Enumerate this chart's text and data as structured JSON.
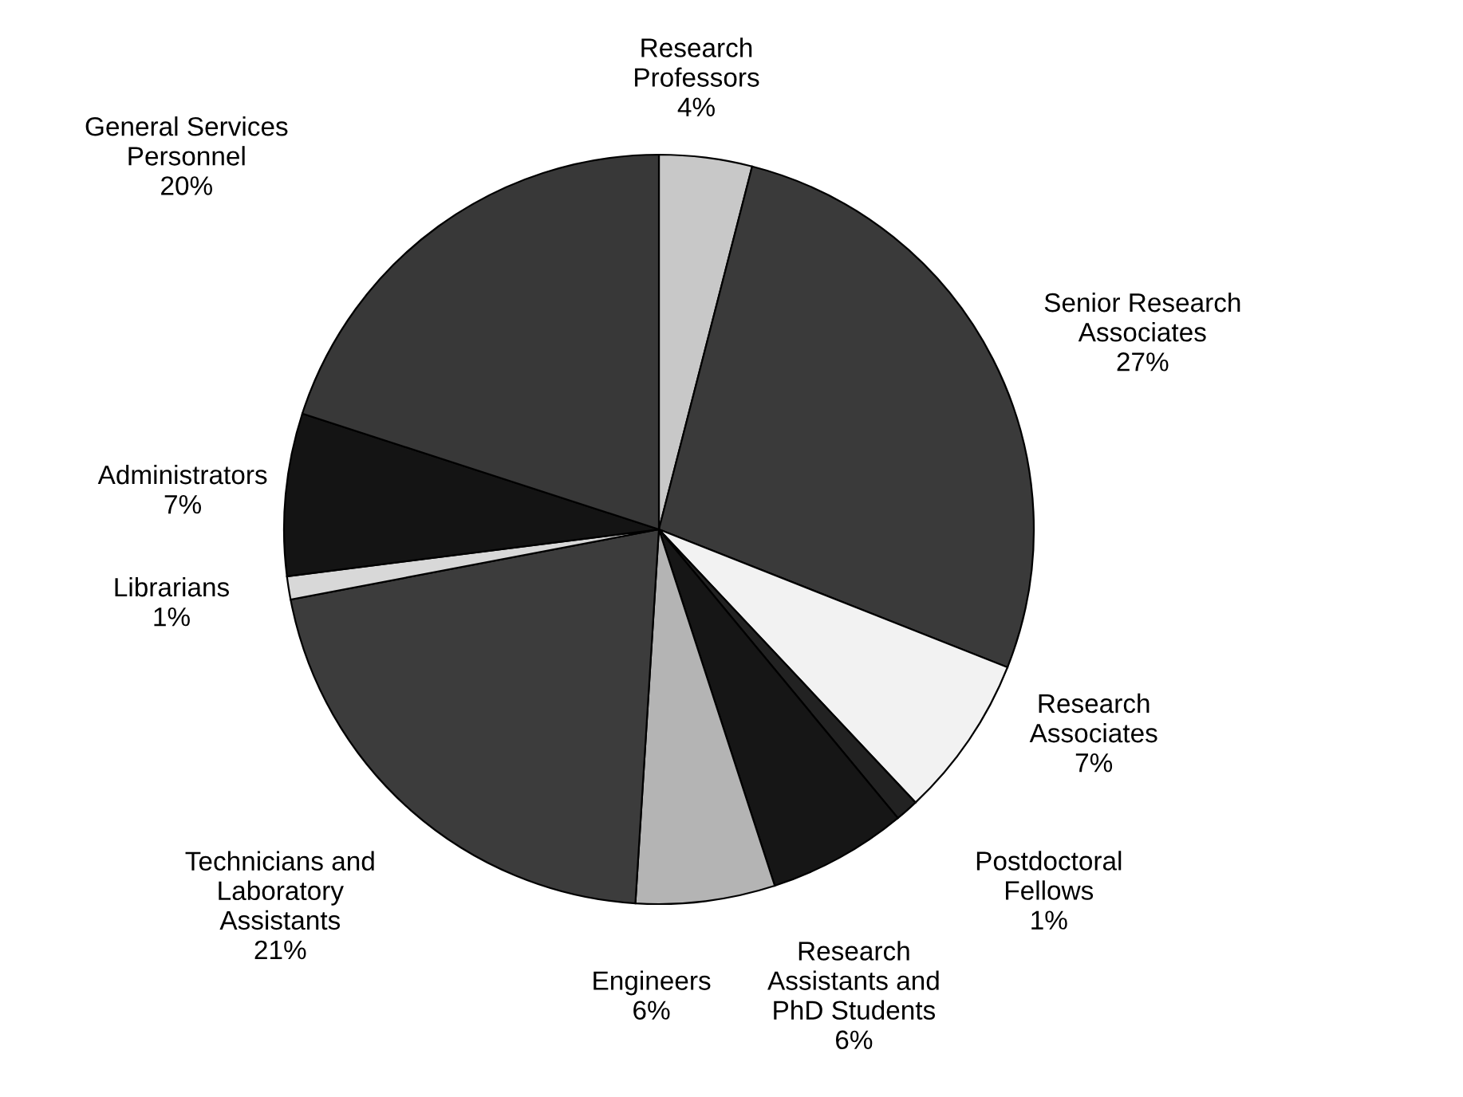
{
  "chart_data": {
    "type": "pie",
    "categories": [
      "Research\nProfessors",
      "Senior Research\nAssociates",
      "Research\nAssociates",
      "Postdoctoral\nFellows",
      "Research\nAssistants and\nPhD Students",
      "Engineers",
      "Technicians and\nLaboratory\nAssistants",
      "Librarians",
      "Administrators",
      "General Services\nPersonnel"
    ],
    "values": [
      4,
      27,
      7,
      1,
      6,
      6,
      21,
      1,
      7,
      20
    ],
    "value_labels": [
      "4%",
      "27%",
      "7%",
      "1%",
      "6%",
      "6%",
      "21%",
      "1%",
      "7%",
      "20%"
    ],
    "colors": [
      "#c8c8c8",
      "#3a3a3a",
      "#f2f2f2",
      "#222222",
      "#161616",
      "#b4b4b4",
      "#3c3c3c",
      "#d8d8d8",
      "#141414",
      "#383838"
    ]
  }
}
